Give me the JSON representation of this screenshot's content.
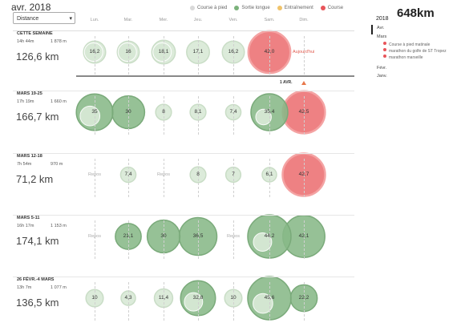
{
  "header": {
    "month_title": "avr. 2018",
    "metric_select": "Distance"
  },
  "legend": [
    {
      "label": "Course à pied",
      "color": "#d9d9d9"
    },
    {
      "label": "Sortie longue",
      "color": "#7bb27b"
    },
    {
      "label": "Entraînement",
      "color": "#f0c36a"
    },
    {
      "label": "Course",
      "color": "#e8555a"
    }
  ],
  "days": [
    "Lun.",
    "Mar.",
    "Mer.",
    "Jeu.",
    "Ven.",
    "Sam.",
    "Dim."
  ],
  "weeks": [
    {
      "title": "CETTE SEMAINE",
      "time": "14h 44m",
      "elev": "1 878 m",
      "distance": "126,6 km",
      "entries": [
        {
          "day": 0,
          "label": "16,2",
          "kind": "easy",
          "size": 16.2,
          "extra": [
            {
              "size": 14,
              "kind": "easy"
            }
          ]
        },
        {
          "day": 1,
          "label": "16",
          "kind": "easy",
          "size": 16,
          "extra": [
            {
              "size": 14,
              "kind": "easy"
            }
          ]
        },
        {
          "day": 2,
          "label": "18,1",
          "kind": "easy",
          "size": 18.1,
          "extra": [
            {
              "size": 14,
              "kind": "easy"
            }
          ]
        },
        {
          "day": 3,
          "label": "17,1",
          "kind": "easy",
          "size": 17.1
        },
        {
          "day": 4,
          "label": "16,2",
          "kind": "easy",
          "size": 16.2
        },
        {
          "day": 5,
          "label": "42,0",
          "kind": "race",
          "size": 42
        },
        {
          "day": 6,
          "label": "Aujourd'hui",
          "kind": "today"
        }
      ]
    },
    {
      "title": "MARS 19-25",
      "time": "17h 19m",
      "elev": "1 660 m",
      "distance": "166,7 km",
      "entries": [
        {
          "day": 0,
          "label": "35",
          "kind": "long",
          "size": 35,
          "extra": [
            {
              "size": 16,
              "kind": "easy"
            }
          ]
        },
        {
          "day": 1,
          "label": "30",
          "kind": "long",
          "size": 30
        },
        {
          "day": 2,
          "label": "8",
          "kind": "easy",
          "size": 8
        },
        {
          "day": 3,
          "label": "8,1",
          "kind": "easy",
          "size": 8.1
        },
        {
          "day": 4,
          "label": "7,4",
          "kind": "easy",
          "size": 7.4
        },
        {
          "day": 5,
          "label": "35,4",
          "kind": "long",
          "size": 35.4,
          "extra": [
            {
              "size": 10,
              "kind": "easy"
            }
          ]
        },
        {
          "day": 6,
          "label": "42,5",
          "kind": "race",
          "size": 42.5
        }
      ]
    },
    {
      "title": "MARS 12-18",
      "time": "7h 54m",
      "elev": "970 m",
      "distance": "71,2 km",
      "entries": [
        {
          "day": 0,
          "label": "Repos",
          "kind": "rest"
        },
        {
          "day": 1,
          "label": "7,4",
          "kind": "easy",
          "size": 7.4
        },
        {
          "day": 2,
          "label": "Repos",
          "kind": "rest"
        },
        {
          "day": 3,
          "label": "8",
          "kind": "easy",
          "size": 8
        },
        {
          "day": 4,
          "label": "7",
          "kind": "easy",
          "size": 7
        },
        {
          "day": 5,
          "label": "6,1",
          "kind": "easy",
          "size": 6.1
        },
        {
          "day": 6,
          "label": "42,7",
          "kind": "race",
          "size": 42.7
        }
      ]
    },
    {
      "title": "MARS 5-11",
      "time": "16h 17m",
      "elev": "1 153 m",
      "distance": "174,1 km",
      "entries": [
        {
          "day": 0,
          "label": "Repos",
          "kind": "rest"
        },
        {
          "day": 1,
          "label": "21,1",
          "kind": "long",
          "size": 21.1
        },
        {
          "day": 2,
          "label": "30",
          "kind": "long",
          "size": 30
        },
        {
          "day": 3,
          "label": "36,5",
          "kind": "long",
          "size": 36.5
        },
        {
          "day": 4,
          "label": "Repos",
          "kind": "rest"
        },
        {
          "day": 5,
          "label": "44,2",
          "kind": "long",
          "size": 44.2,
          "extra": [
            {
              "size": 14,
              "kind": "easy"
            }
          ]
        },
        {
          "day": 6,
          "label": "42,1",
          "kind": "long",
          "size": 42.1
        }
      ]
    },
    {
      "title": "26 FÉVR.-4 MARS",
      "time": "13h 7m",
      "elev": "1 077 m",
      "distance": "136,5 km",
      "entries": [
        {
          "day": 0,
          "label": "10",
          "kind": "easy",
          "size": 10
        },
        {
          "day": 1,
          "label": "4,3",
          "kind": "easy",
          "size": 4.3
        },
        {
          "day": 2,
          "label": "11,4",
          "kind": "easy",
          "size": 11.4
        },
        {
          "day": 3,
          "label": "32,8",
          "kind": "long",
          "size": 32.8,
          "extra": [
            {
              "size": 14,
              "kind": "easy"
            }
          ]
        },
        {
          "day": 4,
          "label": "10",
          "kind": "easy",
          "size": 10
        },
        {
          "day": 5,
          "label": "45,6",
          "kind": "long",
          "size": 45.6,
          "extra": [
            {
              "size": 16,
              "kind": "easy"
            }
          ]
        },
        {
          "day": 6,
          "label": "22,2",
          "kind": "long",
          "size": 22.2
        }
      ]
    }
  ],
  "april_marker": "1 AVR.",
  "side": {
    "total": "648km",
    "year": "2018",
    "items": [
      {
        "label": "Avr."
      },
      {
        "label": "Mars"
      },
      {
        "label": "Févr."
      },
      {
        "label": "Janv."
      }
    ],
    "races": [
      "Course à pied matinale",
      "marathon du golfe de ST Tropez",
      "marathon marseille"
    ]
  }
}
